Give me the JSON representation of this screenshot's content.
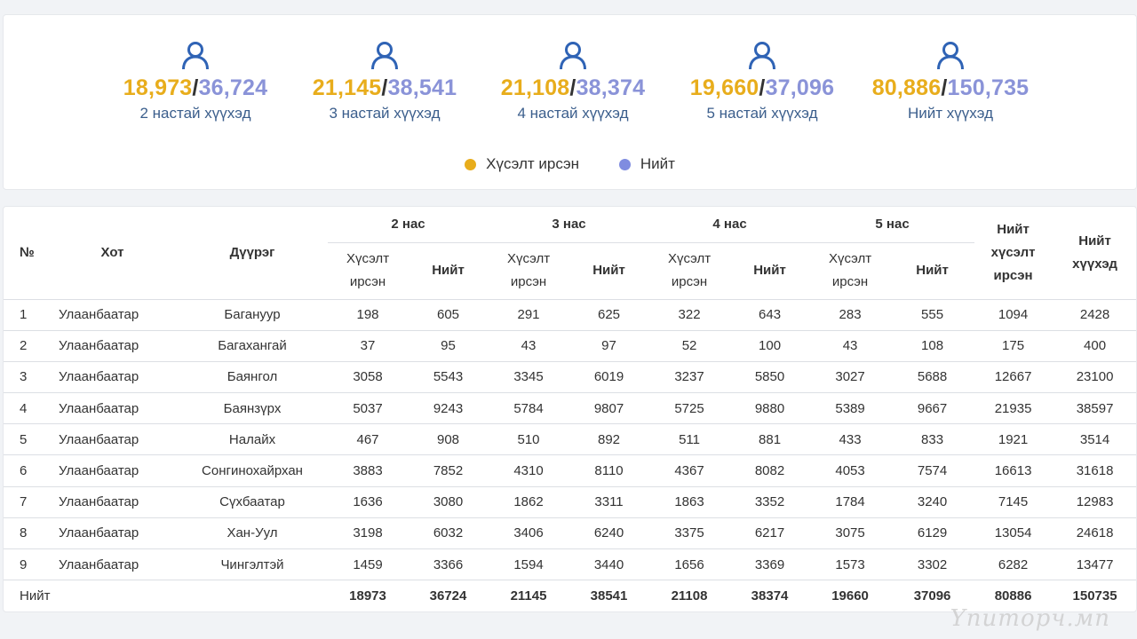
{
  "summary": {
    "stats": [
      {
        "requested": "18,973",
        "total": "36,724",
        "label": "2 настай хүүхэд"
      },
      {
        "requested": "21,145",
        "total": "38,541",
        "label": "3 настай хүүхэд"
      },
      {
        "requested": "21,108",
        "total": "38,374",
        "label": "4 настай хүүхэд"
      },
      {
        "requested": "19,660",
        "total": "37,096",
        "label": "5 настай хүүхэд"
      },
      {
        "requested": "80,886",
        "total": "150,735",
        "label": "Нийт хүүхэд"
      }
    ],
    "separator": "/",
    "icon": "user-icon",
    "legend": [
      {
        "label": "Хүсэлт ирсэн",
        "color": "#e8ad1c"
      },
      {
        "label": "Нийт",
        "color": "#7f8ce0"
      }
    ]
  },
  "table": {
    "headers": {
      "no": "№",
      "city": "Хот",
      "district": "Дүүрэг",
      "age2": "2 нас",
      "age3": "3 нас",
      "age4": "4 нас",
      "age5": "5 нас",
      "requested_line1": "Хүсэлт",
      "requested_line2": "ирсэн",
      "total": "Нийт",
      "total_req_line1": "Нийт",
      "total_req_line2": "хүсэлт",
      "total_req_line3": "ирсэн",
      "total_kids_line1": "Нийт",
      "total_kids_line2": "хүүхэд"
    },
    "rows": [
      [
        "1",
        "Улаанбаатар",
        "Багануур",
        "198",
        "605",
        "291",
        "625",
        "322",
        "643",
        "283",
        "555",
        "1094",
        "2428"
      ],
      [
        "2",
        "Улаанбаатар",
        "Багахангай",
        "37",
        "95",
        "43",
        "97",
        "52",
        "100",
        "43",
        "108",
        "175",
        "400"
      ],
      [
        "3",
        "Улаанбаатар",
        "Баянгол",
        "3058",
        "5543",
        "3345",
        "6019",
        "3237",
        "5850",
        "3027",
        "5688",
        "12667",
        "23100"
      ],
      [
        "4",
        "Улаанбаатар",
        "Баянзүрх",
        "5037",
        "9243",
        "5784",
        "9807",
        "5725",
        "9880",
        "5389",
        "9667",
        "21935",
        "38597"
      ],
      [
        "5",
        "Улаанбаатар",
        "Налайх",
        "467",
        "908",
        "510",
        "892",
        "511",
        "881",
        "433",
        "833",
        "1921",
        "3514"
      ],
      [
        "6",
        "Улаанбаатар",
        "Сонгинохайрхан",
        "3883",
        "7852",
        "4310",
        "8110",
        "4367",
        "8082",
        "4053",
        "7574",
        "16613",
        "31618"
      ],
      [
        "7",
        "Улаанбаатар",
        "Сүхбаатар",
        "1636",
        "3080",
        "1862",
        "3311",
        "1863",
        "3352",
        "1784",
        "3240",
        "7145",
        "12983"
      ],
      [
        "8",
        "Улаанбаатар",
        "Хан-Уул",
        "3198",
        "6032",
        "3406",
        "6240",
        "3375",
        "6217",
        "3075",
        "6129",
        "13054",
        "24618"
      ],
      [
        "9",
        "Улаанбаатар",
        "Чингэлтэй",
        "1459",
        "3366",
        "1594",
        "3440",
        "1656",
        "3369",
        "1573",
        "3302",
        "6282",
        "13477"
      ]
    ],
    "total_row": [
      "Нийт",
      "",
      "",
      "18973",
      "36724",
      "21145",
      "38541",
      "21108",
      "38374",
      "19660",
      "37096",
      "80886",
      "150735"
    ]
  },
  "watermark": "Ynuторч.мn"
}
